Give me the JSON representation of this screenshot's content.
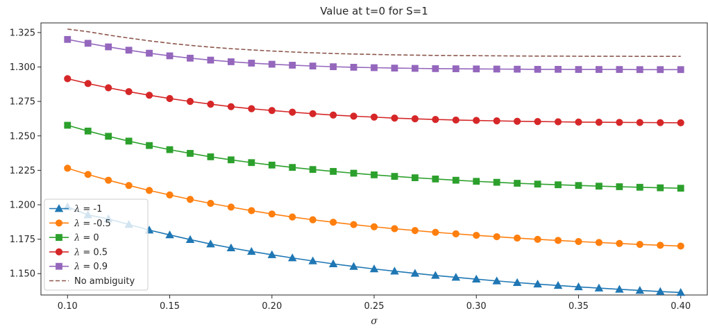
{
  "chart_data": {
    "type": "line",
    "title": "Value at t=0 for S=1",
    "xlabel": "σ",
    "ylabel": "",
    "xlim": [
      0.087,
      0.413
    ],
    "ylim": [
      1.1345,
      1.332
    ],
    "x_ticks": [
      0.1,
      0.15,
      0.2,
      0.25,
      0.3,
      0.35,
      0.4
    ],
    "x_tick_labels": [
      "0.10",
      "0.15",
      "0.20",
      "0.25",
      "0.30",
      "0.35",
      "0.40"
    ],
    "y_ticks": [
      1.15,
      1.175,
      1.2,
      1.225,
      1.25,
      1.275,
      1.3,
      1.325
    ],
    "y_tick_labels": [
      "1.150",
      "1.175",
      "1.200",
      "1.225",
      "1.250",
      "1.275",
      "1.300",
      "1.325"
    ],
    "legend_position": "lower-left",
    "x": [
      0.1,
      0.11,
      0.12,
      0.13,
      0.14,
      0.15,
      0.16,
      0.17,
      0.18,
      0.19,
      0.2,
      0.21,
      0.22,
      0.23,
      0.24,
      0.25,
      0.26,
      0.27,
      0.28,
      0.29,
      0.3,
      0.31,
      0.32,
      0.33,
      0.34,
      0.35,
      0.36,
      0.37,
      0.38,
      0.39,
      0.4
    ],
    "series": [
      {
        "name": "λ = -1",
        "legend_prefix": "λ",
        "legend_suffix": " = -1",
        "color": "#1f77b4",
        "marker": "triangle",
        "dashed": false,
        "values": [
          1.1985,
          1.1926,
          1.1897,
          1.1857,
          1.1816,
          1.1781,
          1.1747,
          1.1715,
          1.1687,
          1.1661,
          1.1637,
          1.1614,
          1.1592,
          1.1571,
          1.1552,
          1.1534,
          1.1518,
          1.1502,
          1.1487,
          1.1473,
          1.146,
          1.1447,
          1.1435,
          1.1424,
          1.1414,
          1.1404,
          1.1395,
          1.1386,
          1.1378,
          1.137,
          1.1363
        ]
      },
      {
        "name": "λ = -0.5",
        "legend_prefix": "λ",
        "legend_suffix": " = -0.5",
        "color": "#ff7f0e",
        "marker": "circle",
        "dashed": false,
        "values": [
          1.2265,
          1.222,
          1.2178,
          1.214,
          1.2104,
          1.2071,
          1.2039,
          1.201,
          1.1983,
          1.1957,
          1.1933,
          1.1911,
          1.1891,
          1.1873,
          1.1856,
          1.184,
          1.1826,
          1.1813,
          1.18,
          1.1789,
          1.1778,
          1.1768,
          1.1758,
          1.1749,
          1.1741,
          1.1733,
          1.1726,
          1.1719,
          1.1712,
          1.1706,
          1.17
        ]
      },
      {
        "name": "λ = 0",
        "legend_prefix": "λ",
        "legend_suffix": " = 0",
        "color": "#2ca02c",
        "marker": "square",
        "dashed": false,
        "values": [
          1.2577,
          1.2535,
          1.2497,
          1.2462,
          1.243,
          1.24,
          1.2373,
          1.2348,
          1.2326,
          1.2306,
          1.2288,
          1.2271,
          1.2256,
          1.2242,
          1.2229,
          1.2217,
          1.2206,
          1.2196,
          1.2187,
          1.2178,
          1.217,
          1.2163,
          1.2156,
          1.215,
          1.2145,
          1.214,
          1.2135,
          1.2131,
          1.2127,
          1.2123,
          1.212
        ]
      },
      {
        "name": "λ = 0.5",
        "legend_prefix": "λ",
        "legend_suffix": " = 0.5",
        "color": "#d62728",
        "marker": "circle",
        "dashed": false,
        "values": [
          1.2915,
          1.288,
          1.2849,
          1.2821,
          1.2795,
          1.2771,
          1.275,
          1.273,
          1.2712,
          1.2697,
          1.2684,
          1.2672,
          1.2661,
          1.2651,
          1.2643,
          1.2636,
          1.2629,
          1.2624,
          1.2619,
          1.2615,
          1.2612,
          1.2609,
          1.2606,
          1.2604,
          1.2602,
          1.26,
          1.2599,
          1.2598,
          1.2597,
          1.2596,
          1.2595
        ]
      },
      {
        "name": "λ = 0.9",
        "legend_prefix": "λ",
        "legend_suffix": " = 0.9",
        "color": "#9467bd",
        "marker": "square",
        "dashed": false,
        "values": [
          1.32,
          1.3172,
          1.3146,
          1.3122,
          1.31,
          1.3081,
          1.3064,
          1.305,
          1.3038,
          1.3028,
          1.302,
          1.3013,
          1.3007,
          1.3002,
          1.2998,
          1.2995,
          1.2992,
          1.299,
          1.2988,
          1.2987,
          1.2986,
          1.2985,
          1.2984,
          1.2983,
          1.2983,
          1.2982,
          1.2982,
          1.2982,
          1.2981,
          1.2981,
          1.2981
        ]
      },
      {
        "name": "No ambiguity",
        "legend_prefix": "",
        "legend_suffix": "No ambiguity",
        "color": "#8c564b",
        "marker": "none",
        "dashed": true,
        "values": [
          1.3275,
          1.3256,
          1.3232,
          1.321,
          1.319,
          1.3172,
          1.3157,
          1.3144,
          1.3133,
          1.3124,
          1.3116,
          1.3109,
          1.3103,
          1.3098,
          1.3094,
          1.3091,
          1.3088,
          1.3086,
          1.3084,
          1.3083,
          1.3082,
          1.3081,
          1.308,
          1.3079,
          1.3079,
          1.3078,
          1.3078,
          1.3078,
          1.3077,
          1.3077,
          1.3077
        ]
      }
    ]
  }
}
